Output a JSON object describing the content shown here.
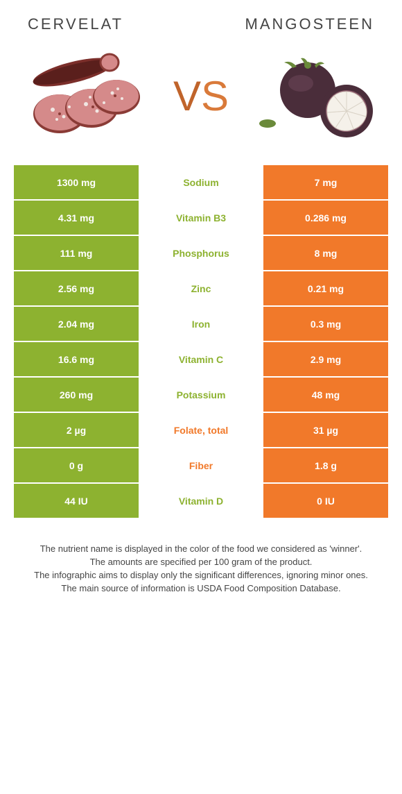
{
  "header": {
    "left_title": "Cervelat",
    "right_title": "Mangosteen"
  },
  "vs": {
    "v": "V",
    "s": "S"
  },
  "colors": {
    "left_food": "#8db230",
    "right_food": "#f1792a",
    "mid_bg": "#ffffff",
    "cell_text": "#ffffff",
    "header_text": "#444444"
  },
  "illustration": {
    "cervelat": {
      "sausage_body": "#7b2e2a",
      "sausage_dark": "#5a1f1c",
      "slice_fill": "#d58a8a",
      "slice_rim": "#8a3b36",
      "speckle": "#f0e6e2"
    },
    "mangosteen": {
      "shell": "#4a2d3a",
      "shell_light": "#6b4456",
      "stem": "#6a8a3a",
      "flesh": "#f5f1ea",
      "flesh_shadow": "#d9d2c6"
    }
  },
  "rows": [
    {
      "nutrient": "Sodium",
      "left": "1300 mg",
      "right": "7 mg",
      "winner": "left"
    },
    {
      "nutrient": "Vitamin B3",
      "left": "4.31 mg",
      "right": "0.286 mg",
      "winner": "left"
    },
    {
      "nutrient": "Phosphorus",
      "left": "111 mg",
      "right": "8 mg",
      "winner": "left"
    },
    {
      "nutrient": "Zinc",
      "left": "2.56 mg",
      "right": "0.21 mg",
      "winner": "left"
    },
    {
      "nutrient": "Iron",
      "left": "2.04 mg",
      "right": "0.3 mg",
      "winner": "left"
    },
    {
      "nutrient": "Vitamin C",
      "left": "16.6 mg",
      "right": "2.9 mg",
      "winner": "left"
    },
    {
      "nutrient": "Potassium",
      "left": "260 mg",
      "right": "48 mg",
      "winner": "left"
    },
    {
      "nutrient": "Folate, total",
      "left": "2 µg",
      "right": "31 µg",
      "winner": "right"
    },
    {
      "nutrient": "Fiber",
      "left": "0 g",
      "right": "1.8 g",
      "winner": "right"
    },
    {
      "nutrient": "Vitamin D",
      "left": "44 IU",
      "right": "0 IU",
      "winner": "left"
    }
  ],
  "footer": {
    "line1": "The nutrient name is displayed in the color of the food we considered as 'winner'.",
    "line2": "The amounts are specified per 100 gram of the product.",
    "line3": "The infographic aims to display only the significant differences, ignoring minor ones.",
    "line4": "The main source of information is USDA Food Composition Database."
  }
}
